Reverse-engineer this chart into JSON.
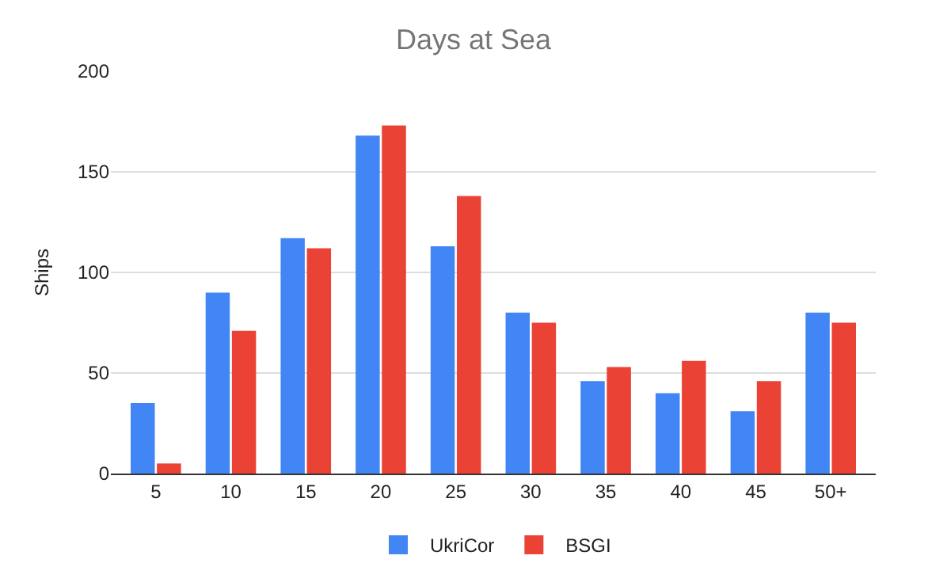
{
  "chart_data": {
    "type": "bar",
    "title": "Days at Sea",
    "ylabel": "Ships",
    "categories": [
      "5",
      "10",
      "15",
      "20",
      "25",
      "30",
      "35",
      "40",
      "45",
      "50+"
    ],
    "series": [
      {
        "name": "UkriCor",
        "color": "#4285f4",
        "values": [
          35,
          90,
          117,
          168,
          113,
          80,
          46,
          40,
          31,
          80
        ]
      },
      {
        "name": "BSGI",
        "color": "#ea4335",
        "values": [
          5,
          71,
          112,
          173,
          138,
          75,
          53,
          56,
          46,
          75
        ]
      }
    ],
    "ylim": [
      0,
      200
    ],
    "yticks": [
      0,
      50,
      100,
      150,
      200
    ],
    "grid": "y",
    "legend": "bottom"
  }
}
